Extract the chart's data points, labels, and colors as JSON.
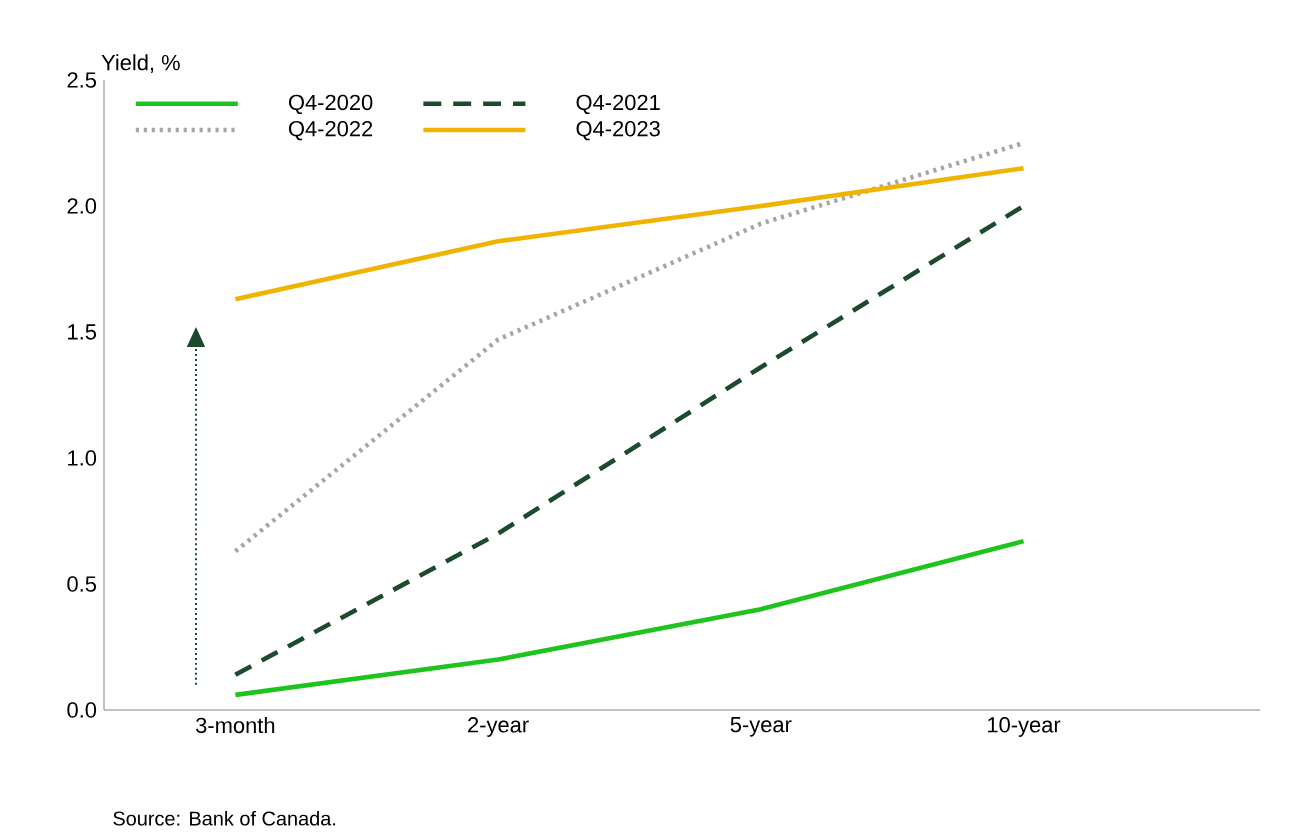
{
  "chart_data": {
    "type": "line",
    "ylabel": "Yield, %",
    "categories": [
      "3-month",
      "2-year",
      "5-year",
      "10-year"
    ],
    "series": [
      {
        "name": "Q4-2020",
        "color": "#1ec31e",
        "line_style": "solid",
        "values": [
          0.06,
          0.2,
          0.4,
          0.67
        ]
      },
      {
        "name": "Q4-2021",
        "color": "#1b4a2c",
        "line_style": "dashed",
        "values": [
          0.14,
          0.7,
          1.36,
          2.0
        ]
      },
      {
        "name": "Q4-2022",
        "color": "#a6a6a6",
        "line_style": "dotted",
        "values": [
          0.63,
          1.47,
          1.93,
          2.25
        ]
      },
      {
        "name": "Q4-2023",
        "color": "#f0b400",
        "line_style": "solid",
        "values": [
          1.63,
          1.86,
          2.0,
          2.15
        ]
      }
    ],
    "ylim": [
      0,
      2.5
    ],
    "yticks": [
      {
        "value": 0,
        "label": "0.0"
      },
      {
        "value": 0.5,
        "label": "0.5"
      },
      {
        "value": 1,
        "label": "1.0"
      },
      {
        "value": 1.5,
        "label": "1.5"
      },
      {
        "value": 2,
        "label": "2.0"
      },
      {
        "value": 2.5,
        "label": "2.5"
      }
    ],
    "grid": false,
    "legend": "top left",
    "marker": "none",
    "annotations": [
      "Source: Bank of Canada."
    ]
  }
}
